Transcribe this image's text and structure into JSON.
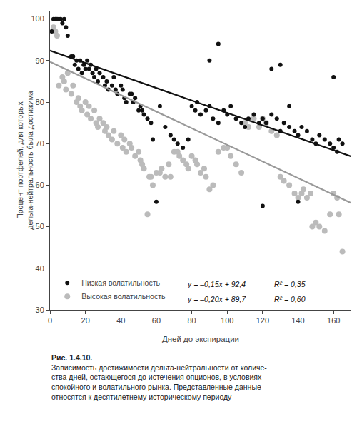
{
  "chart_data": {
    "type": "scatter",
    "xlabel": "Дней до экспирации",
    "ylabel": "Процент портфелей, для которых\nдельта-нейтральность была достижима",
    "xlim": [
      0,
      170
    ],
    "ylim": [
      30,
      102
    ],
    "xticks": [
      0,
      20,
      40,
      60,
      80,
      100,
      120,
      140,
      160
    ],
    "yticks": [
      30,
      40,
      50,
      60,
      70,
      80,
      90,
      100
    ],
    "grid": false,
    "legend": "lower left",
    "series": [
      {
        "name": "Низкая волатильность",
        "type": "scatter",
        "marker": "circle",
        "color": "#111111",
        "x": [
          1,
          2,
          3,
          4,
          5,
          6,
          7,
          8,
          9,
          10,
          12,
          13,
          14,
          15,
          16,
          17,
          18,
          19,
          20,
          21,
          22,
          23,
          24,
          25,
          26,
          27,
          28,
          30,
          31,
          32,
          33,
          35,
          36,
          37,
          38,
          40,
          41,
          42,
          43,
          45,
          46,
          47,
          48,
          50,
          51,
          52,
          53,
          55,
          57,
          58,
          62,
          65,
          68,
          70,
          72,
          75,
          78,
          80,
          82,
          83,
          85,
          88,
          90,
          92,
          95,
          98,
          100,
          102,
          105,
          108,
          110,
          112,
          115,
          118,
          120,
          122,
          125,
          128,
          130,
          132,
          135,
          138,
          140,
          142,
          145,
          148,
          150,
          152,
          155,
          158,
          160,
          162,
          163,
          165,
          60,
          120,
          140,
          130,
          90,
          160,
          125,
          135,
          95
        ],
        "values": [
          97,
          100,
          100,
          100,
          100,
          100,
          99,
          100,
          98,
          96,
          91,
          91,
          89,
          90,
          88,
          90,
          87,
          89,
          88,
          90,
          88,
          89,
          87,
          86,
          88,
          85,
          87,
          86,
          84,
          85,
          83,
          84,
          86,
          83,
          82,
          84,
          83,
          81,
          80,
          82,
          82,
          80,
          81,
          78,
          79,
          78,
          77,
          76,
          75,
          71,
          79,
          74,
          72,
          71,
          70,
          69,
          71,
          79,
          78,
          80,
          77,
          78,
          79,
          76,
          75,
          78,
          77,
          79,
          76,
          75,
          74,
          76,
          77,
          75,
          76,
          75,
          77,
          76,
          73,
          75,
          74,
          73,
          72,
          74,
          73,
          71,
          70,
          72,
          71,
          70,
          69,
          68,
          71,
          70,
          56,
          55,
          56,
          89,
          90,
          86,
          88,
          79,
          94
        ]
      },
      {
        "name": "Высокая волатильность",
        "type": "scatter",
        "marker": "circle",
        "color": "#bbbbbb",
        "x": [
          2,
          3,
          4,
          5,
          7,
          8,
          9,
          10,
          12,
          13,
          15,
          16,
          17,
          18,
          20,
          21,
          22,
          23,
          25,
          26,
          27,
          28,
          30,
          31,
          32,
          33,
          35,
          36,
          38,
          40,
          41,
          42,
          43,
          45,
          46,
          48,
          50,
          51,
          52,
          53,
          55,
          56,
          57,
          58,
          60,
          62,
          63,
          65,
          67,
          68,
          70,
          72,
          73,
          75,
          77,
          78,
          80,
          82,
          83,
          85,
          87,
          88,
          90,
          92,
          95,
          98,
          100,
          102,
          105,
          108,
          110,
          112,
          115,
          118,
          120,
          122,
          125,
          128,
          130,
          132,
          135,
          138,
          140,
          142,
          143,
          145,
          147,
          148,
          150,
          152,
          155,
          158,
          160,
          162,
          163,
          165
        ],
        "values": [
          98,
          97,
          96,
          84,
          86,
          85,
          83,
          87,
          82,
          84,
          80,
          81,
          79,
          78,
          80,
          77,
          79,
          76,
          78,
          75,
          74,
          76,
          75,
          73,
          74,
          72,
          71,
          73,
          70,
          72,
          69,
          71,
          68,
          70,
          69,
          67,
          68,
          66,
          65,
          64,
          53,
          62,
          62,
          60,
          63,
          63,
          64,
          62,
          65,
          62,
          68,
          68,
          67,
          66,
          65,
          64,
          67,
          66,
          65,
          63,
          64,
          62,
          59,
          60,
          68,
          69,
          69,
          67,
          65,
          63,
          75,
          74,
          76,
          74,
          76,
          75,
          73,
          72,
          62,
          61,
          60,
          58,
          57,
          58,
          59,
          57,
          58,
          50,
          51,
          50,
          49,
          53,
          58,
          57,
          53,
          44
        ]
      },
      {
        "type": "line",
        "line_style": "solid",
        "color": "#111111",
        "x": [
          0,
          170
        ],
        "values": [
          92.4,
          66.9
        ]
      },
      {
        "type": "line",
        "line_style": "solid",
        "color": "#999999",
        "x": [
          0,
          170
        ],
        "values": [
          89.7,
          55.7
        ]
      }
    ],
    "annotations": [
      "y = –0,15x + 92,4",
      "R² = 0,35",
      "y = –0,20x + 89,7",
      "R² = 0,60"
    ],
    "caption": [
      "Рис. 1.4.10.",
      "Зависимость достижимости дельта-нейтральности от количе-",
      "ства дней, остающегося до истечения опционов, в условиях",
      "спокойного и волатильного рынка. Представленные данные",
      "относятся к десятилетнему историческому периоду"
    ]
  }
}
